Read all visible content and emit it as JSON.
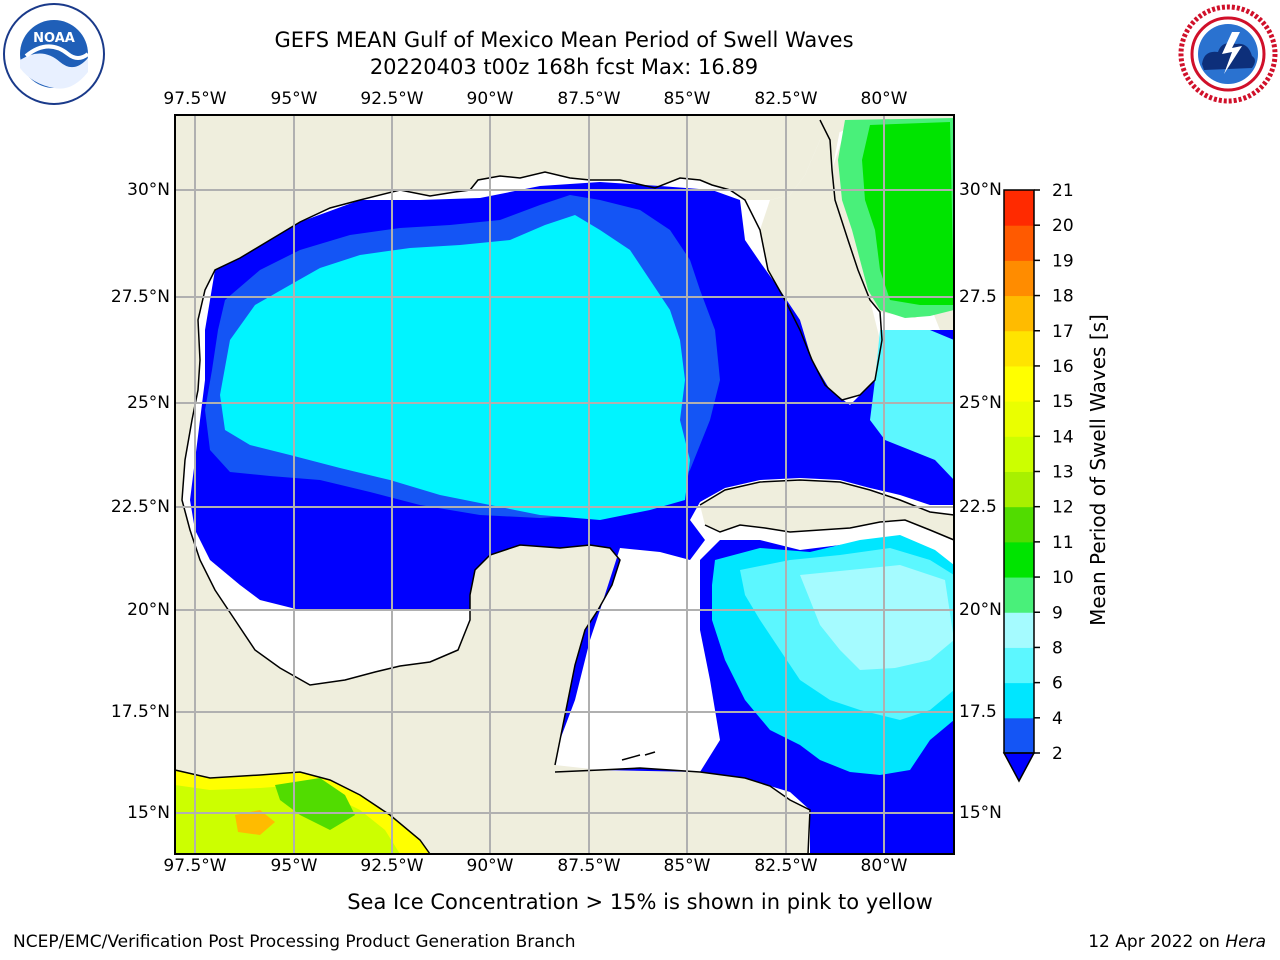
{
  "header": {
    "title_line1": "GEFS MEAN Gulf of Mexico Mean Period of Swell Waves",
    "title_line2": "20220403 t00z 168h fcst   Max: 16.89"
  },
  "logos": {
    "left": {
      "icon": "noaa-logo-icon",
      "text": "NOAA"
    },
    "right": {
      "icon": "nws-logo-icon",
      "text": "NATIONAL WEATHER SERVICE"
    }
  },
  "map": {
    "lon_labels": [
      "97.5°W",
      "95°W",
      "92.5°W",
      "90°W",
      "87.5°W",
      "85°W",
      "82.5°W",
      "80°W"
    ],
    "lat_labels_left": [
      "30°N",
      "27.5°N",
      "25°N",
      "22.5°N",
      "20°N",
      "17.5°N",
      "15°N"
    ],
    "lat_labels_right": [
      "30°N",
      "27.5",
      "25°N",
      "22.5",
      "20°N",
      "17.5",
      "15°N"
    ],
    "colors": {
      "land": "#efeedd",
      "grid": "#b0b0b0",
      "coast": "#000000"
    }
  },
  "colorbar": {
    "label": "Mean Period of Swell Waves [s]",
    "tick_labels": [
      "2",
      "4",
      "6",
      "8",
      "9",
      "10",
      "11",
      "12",
      "13",
      "14",
      "15",
      "16",
      "17",
      "18",
      "19",
      "20",
      "21"
    ],
    "colors": [
      "#1455f5",
      "#00e6ff",
      "#5cf7ff",
      "#a5fbff",
      "#49f07a",
      "#00e400",
      "#51dc00",
      "#a8f000",
      "#ccff00",
      "#eaff00",
      "#ffff00",
      "#ffe400",
      "#ffbb00",
      "#ff8c00",
      "#ff5a00",
      "#ff2a00",
      "#ff0000"
    ],
    "extend_color": "#0000ff"
  },
  "caption": "Sea Ice Concentration > 15% is shown in pink to yellow",
  "footer": {
    "left": "NCEP/EMC/Verification Post Processing Product Generation Branch",
    "right_prefix": "12 Apr 2022 on ",
    "right_host": "Hera"
  }
}
